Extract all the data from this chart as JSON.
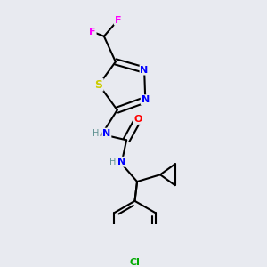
{
  "bg_color": "#e8eaf0",
  "atom_colors": {
    "C": "#000000",
    "N": "#0000ff",
    "O": "#ff0000",
    "S": "#cccc00",
    "F": "#ff00ff",
    "Cl": "#00aa00",
    "H": "#5c9090"
  },
  "bond_color": "#000000",
  "bond_width": 1.5
}
